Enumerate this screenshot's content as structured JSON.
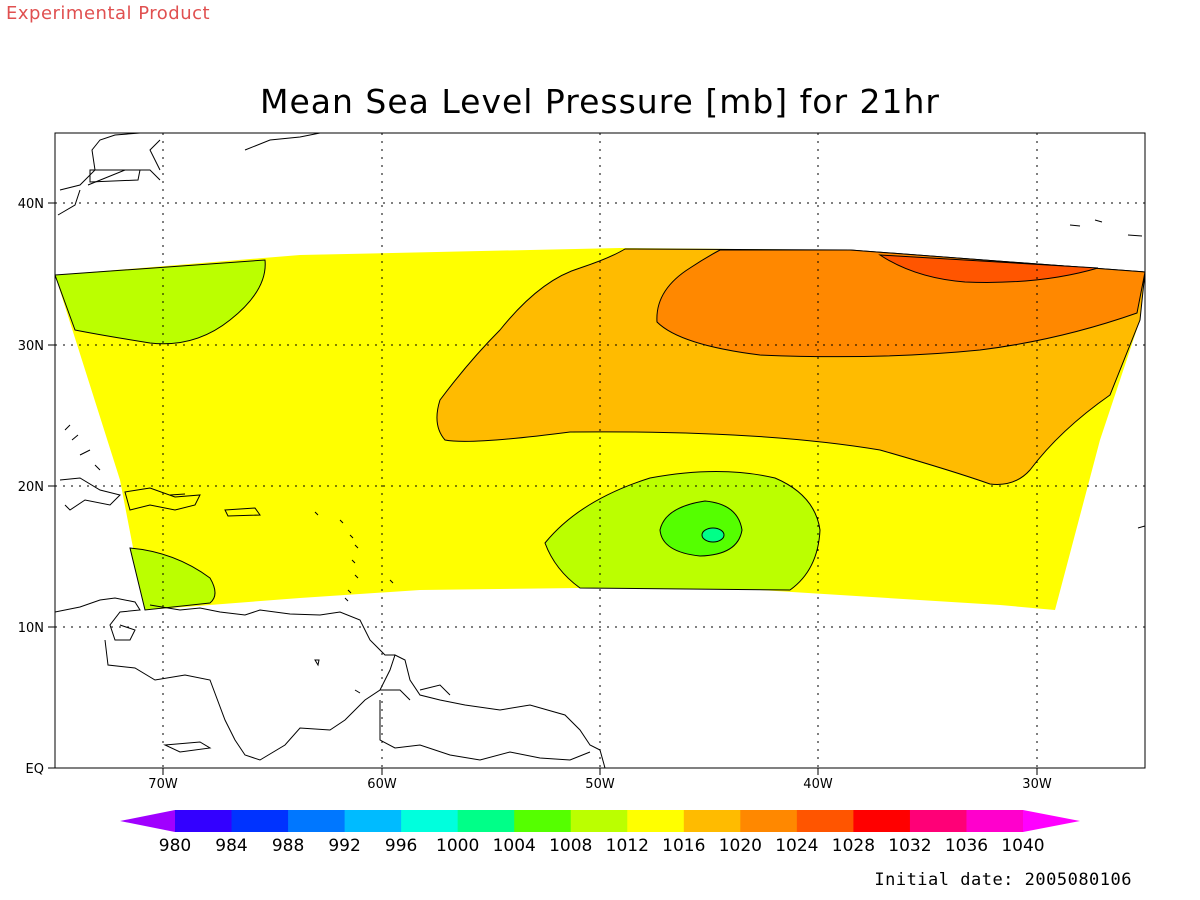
{
  "header": {
    "product_tag": "Experimental Product",
    "title": "Mean Sea Level Pressure [mb] for 21hr"
  },
  "map": {
    "lat_labels": [
      "EQ",
      "10N",
      "20N",
      "30N",
      "40N"
    ],
    "lon_labels": [
      "70W",
      "60W",
      "50W",
      "40W",
      "30W"
    ],
    "gridlines": "dotted",
    "land_fill": "#ffffff",
    "coastline_color": "#000000",
    "contour_color": "#000000"
  },
  "colorbar": {
    "labels": [
      "980",
      "984",
      "988",
      "992",
      "996",
      "1000",
      "1004",
      "1008",
      "1012",
      "1016",
      "1020",
      "1024",
      "1028",
      "1032",
      "1036",
      "1040"
    ],
    "colors": [
      "#a000ff",
      "#3300ff",
      "#0033ff",
      "#0077ff",
      "#00bbff",
      "#00ffdd",
      "#00ff88",
      "#55ff00",
      "#bbff00",
      "#ffff00",
      "#ffbb00",
      "#ff8800",
      "#ff5500",
      "#ff0000",
      "#ff0077",
      "#ff00cc",
      "#ff00ff"
    ]
  },
  "footer": {
    "initial_date": "Initial date: 2005080106"
  }
}
